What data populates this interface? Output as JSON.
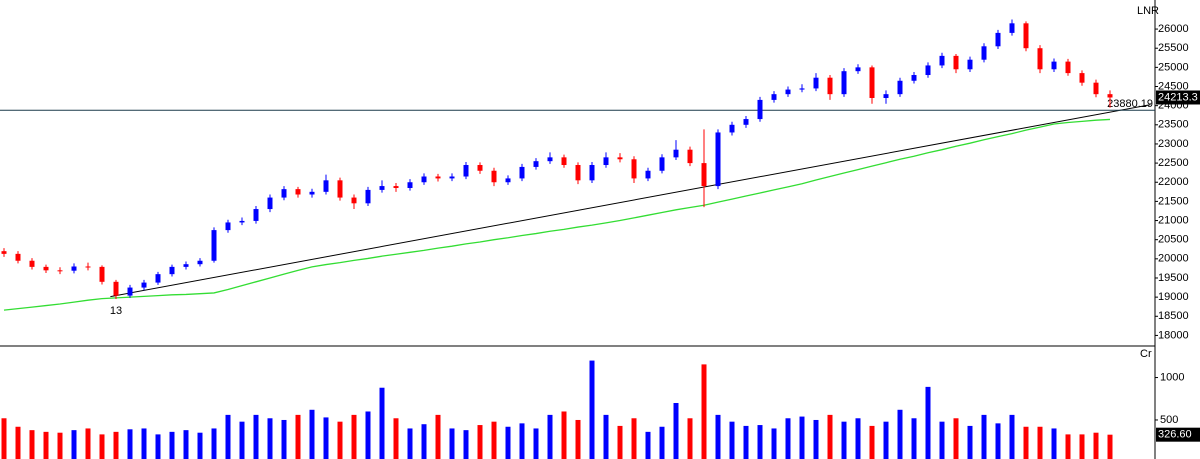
{
  "chart_data": {
    "type": "candlestick",
    "title": "LNR",
    "categories": [
      null,
      null,
      null,
      null,
      null,
      null,
      null,
      null,
      "13",
      null,
      null,
      null,
      null,
      null,
      null,
      null,
      null,
      null,
      null,
      null,
      null,
      null,
      null,
      null,
      null,
      null,
      null,
      null,
      null,
      null,
      null,
      null,
      null,
      null,
      null,
      null,
      null,
      null,
      null,
      null,
      null,
      null,
      null,
      null,
      null,
      null,
      null,
      null,
      null,
      null,
      null,
      null,
      null,
      null,
      null,
      null,
      null,
      null,
      null,
      null,
      null,
      null,
      null,
      null,
      null,
      null,
      null,
      null,
      null,
      null,
      null,
      null,
      null,
      null,
      null,
      null,
      null,
      null,
      null,
      null
    ],
    "open": [
      20200,
      20130,
      19950,
      19790,
      19700,
      19690,
      19800,
      19790,
      19400,
      19040,
      19250,
      19380,
      19600,
      19790,
      19860,
      19950,
      20750,
      20950,
      20990,
      21300,
      21600,
      21820,
      21680,
      21750,
      22050,
      21600,
      21450,
      21800,
      21900,
      21850,
      22000,
      22150,
      22100,
      22150,
      22450,
      22300,
      22000,
      22100,
      22400,
      22550,
      22650,
      22450,
      22050,
      22450,
      22650,
      22600,
      22100,
      22300,
      22650,
      22850,
      22500,
      21900,
      23300,
      23500,
      23650,
      24150,
      24300,
      24420,
      24450,
      24730,
      24300,
      24900,
      25000,
      24200,
      24300,
      24650,
      24800,
      25050,
      25300,
      24950,
      25200,
      25550,
      25900,
      26150,
      25500,
      24950,
      25150,
      24850,
      24600,
      24300
    ],
    "high": [
      20280,
      20200,
      20020,
      19850,
      19780,
      19880,
      19900,
      19830,
      19450,
      19320,
      19450,
      19660,
      19850,
      19930,
      20020,
      20820,
      21020,
      21080,
      21380,
      21680,
      21900,
      21880,
      21830,
      22200,
      22120,
      21680,
      21880,
      22050,
      21980,
      22080,
      22230,
      22220,
      22230,
      22530,
      22520,
      22380,
      22180,
      22480,
      22630,
      22780,
      22720,
      22520,
      22530,
      22780,
      22760,
      22680,
      22380,
      22730,
      23100,
      22930,
      23380,
      23380,
      23580,
      23730,
      24230,
      24380,
      24500,
      24560,
      24850,
      24800,
      24980,
      25080,
      25050,
      24400,
      24730,
      24880,
      25130,
      25380,
      25350,
      25280,
      25630,
      25980,
      26250,
      26200,
      25580,
      25230,
      25220,
      24920,
      24680,
      24400
    ],
    "low": [
      20050,
      19880,
      19720,
      19630,
      19600,
      19620,
      19700,
      19330,
      18950,
      18980,
      19180,
      19320,
      19540,
      19720,
      19800,
      19900,
      20680,
      20880,
      20920,
      21220,
      21530,
      21600,
      21600,
      21680,
      21520,
      21300,
      21380,
      21730,
      21750,
      21780,
      21930,
      22020,
      22030,
      22080,
      22220,
      21900,
      21930,
      22030,
      22330,
      22480,
      22380,
      21950,
      21980,
      22380,
      22520,
      21980,
      22030,
      22230,
      22580,
      22420,
      21350,
      21820,
      23220,
      23420,
      23580,
      24080,
      24230,
      24350,
      24380,
      24150,
      24230,
      24830,
      24050,
      24050,
      24230,
      24580,
      24730,
      24980,
      24850,
      24880,
      25130,
      25480,
      25830,
      25420,
      24850,
      24880,
      24780,
      24520,
      24220,
      23950
    ],
    "close": [
      20130,
      19950,
      19790,
      19700,
      19690,
      19800,
      19790,
      19400,
      19040,
      19250,
      19380,
      19600,
      19790,
      19860,
      19950,
      20750,
      20950,
      20990,
      21300,
      21600,
      21820,
      21680,
      21750,
      22050,
      21600,
      21450,
      21800,
      21900,
      21850,
      22000,
      22150,
      22100,
      22150,
      22450,
      22300,
      22000,
      22100,
      22400,
      22550,
      22650,
      22450,
      22050,
      22450,
      22650,
      22600,
      22100,
      22300,
      22650,
      22850,
      22500,
      21900,
      23300,
      23500,
      23650,
      24150,
      24300,
      24420,
      24450,
      24730,
      24300,
      24900,
      25000,
      24200,
      24300,
      24650,
      24800,
      25050,
      25300,
      24950,
      25200,
      25550,
      25900,
      26150,
      25500,
      24950,
      25150,
      24850,
      24600,
      24300,
      24213.3
    ],
    "up_color": "#0000ff",
    "down_color": "#ff0000",
    "ylim": [
      17750,
      26550
    ],
    "yticks": [
      18000,
      18500,
      19000,
      19500,
      20000,
      20500,
      21000,
      21500,
      22000,
      22500,
      23000,
      23500,
      24000,
      24500,
      25000,
      25500,
      26000
    ],
    "moving_average": {
      "color": "#33dd33",
      "values": [
        18660,
        18700,
        18740,
        18780,
        18820,
        18870,
        18920,
        18960,
        18980,
        19000,
        19020,
        19040,
        19060,
        19070,
        19090,
        19110,
        19200,
        19300,
        19400,
        19500,
        19600,
        19700,
        19790,
        19850,
        19900,
        19960,
        20010,
        20070,
        20120,
        20170,
        20220,
        20280,
        20330,
        20390,
        20440,
        20500,
        20550,
        20610,
        20660,
        20720,
        20770,
        20830,
        20880,
        20940,
        21000,
        21070,
        21140,
        21210,
        21280,
        21340,
        21400,
        21480,
        21560,
        21640,
        21720,
        21800,
        21880,
        21960,
        22060,
        22150,
        22240,
        22330,
        22420,
        22510,
        22600,
        22680,
        22770,
        22850,
        22940,
        23020,
        23110,
        23190,
        23270,
        23360,
        23440,
        23520,
        23560,
        23590,
        23620,
        23640
      ]
    },
    "trendline": {
      "color": "#000000",
      "x": [
        7.6,
        81.9
      ],
      "y": [
        19014,
        24026
      ]
    },
    "hline": {
      "value": 23880.19,
      "color": "#1a3a4a"
    },
    "volume": {
      "unit": "Cr",
      "ylim": [
        40,
        1360
      ],
      "yticks": [
        500,
        1000
      ],
      "last_label": "326.60",
      "values": [
        520,
        420,
        380,
        360,
        350,
        380,
        400,
        330,
        360,
        390,
        400,
        330,
        360,
        380,
        350,
        400,
        560,
        480,
        560,
        520,
        500,
        560,
        620,
        530,
        480,
        560,
        600,
        880,
        520,
        400,
        450,
        560,
        400,
        380,
        440,
        480,
        420,
        460,
        400,
        560,
        600,
        500,
        1200,
        560,
        430,
        520,
        360,
        420,
        700,
        520,
        1155,
        560,
        480,
        430,
        440,
        400,
        520,
        540,
        500,
        560,
        480,
        520,
        430,
        480,
        620,
        520,
        890,
        480,
        520,
        430,
        560,
        460,
        560,
        420,
        420,
        400,
        330,
        330,
        350,
        326.6
      ]
    }
  }
}
